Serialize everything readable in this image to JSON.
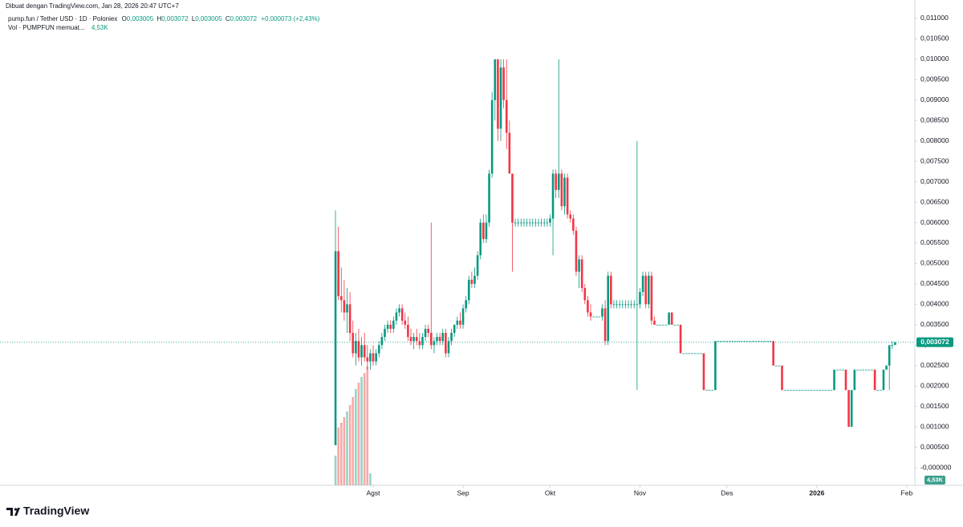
{
  "header": {
    "credit": "Dibuat dengan TradingView.com, Jan 28, 2026 20:47 UTC+7",
    "logo": "TradingView"
  },
  "chart_data": {
    "type": "candlestick",
    "symbol": "pump.fun / Tether USD · 1D · Poloniex",
    "ohlc_legend": [
      {
        "label": "O",
        "value": "0,003005"
      },
      {
        "label": "H",
        "value": "0,003072"
      },
      {
        "label": "L",
        "value": "0,003005"
      },
      {
        "label": "C",
        "value": "0,003072"
      }
    ],
    "change": "+0,000073 (+2,43%)",
    "volume_legend": {
      "label": "Vol · PUMPFUN memuat...",
      "value": "4,53K"
    },
    "price_label": "0,003072",
    "volume_label": "4,53K",
    "up_color": "#089981",
    "down_color": "#f23645",
    "volume_up_color": "#94d5c8",
    "volume_down_color": "#f7a9a7",
    "xlim": [
      -115.7,
      199.8
    ],
    "xticks": [
      {
        "value": 13,
        "label": "Agst"
      },
      {
        "value": 44,
        "label": "Sep"
      },
      {
        "value": 74,
        "label": "Okt"
      },
      {
        "value": 105,
        "label": "Nov"
      },
      {
        "value": 135,
        "label": "Des"
      },
      {
        "value": 166,
        "label": "2026"
      },
      {
        "value": 197,
        "label": "Feb"
      }
    ],
    "ylim": [
      -0.000432,
      0.011255
    ],
    "yticks": [
      {
        "value": 0,
        "label": "-0,000000"
      },
      {
        "value": 0.0005,
        "label": "0,000500"
      },
      {
        "value": 0.001,
        "label": "0,001000"
      },
      {
        "value": 0.0015,
        "label": "0,001500"
      },
      {
        "value": 0.002,
        "label": "0,002000"
      },
      {
        "value": 0.0025,
        "label": "0,002500"
      },
      {
        "value": 0.003,
        "label": "0,003000"
      },
      {
        "value": 0.0035,
        "label": "0,003500"
      },
      {
        "value": 0.004,
        "label": "0,004000"
      },
      {
        "value": 0.0045,
        "label": "0,004500"
      },
      {
        "value": 0.005,
        "label": "0,005000"
      },
      {
        "value": 0.0055,
        "label": "0,005500"
      },
      {
        "value": 0.006,
        "label": "0,006000"
      },
      {
        "value": 0.0065,
        "label": "0,006500"
      },
      {
        "value": 0.007,
        "label": "0,007000"
      },
      {
        "value": 0.0075,
        "label": "0,007500"
      },
      {
        "value": 0.008,
        "label": "0,008000"
      },
      {
        "value": 0.0085,
        "label": "0,008500"
      },
      {
        "value": 0.009,
        "label": "0,009000"
      },
      {
        "value": 0.0095,
        "label": "0,009500"
      },
      {
        "value": 0.01,
        "label": "0,010000"
      },
      {
        "value": 0.0105,
        "label": "0,010500"
      },
      {
        "value": 0.011,
        "label": "0,011000"
      }
    ],
    "volume": [
      370,
      720,
      780,
      850,
      920,
      1000,
      1100,
      1200,
      1280,
      1350,
      1400,
      1480,
      150
    ],
    "candles": [
      [
        0.00055,
        0.0063,
        0.00055,
        0.0053
      ],
      [
        0.0053,
        0.0059,
        0.0041,
        0.0042
      ],
      [
        0.0042,
        0.0049,
        0.0038,
        0.0041
      ],
      [
        0.0041,
        0.0046,
        0.0036,
        0.0038
      ],
      [
        0.0038,
        0.0044,
        0.0033,
        0.004
      ],
      [
        0.004,
        0.0043,
        0.0031,
        0.0033
      ],
      [
        0.0033,
        0.0036,
        0.0027,
        0.0028
      ],
      [
        0.0028,
        0.0033,
        0.0025,
        0.0031
      ],
      [
        0.0031,
        0.0034,
        0.0026,
        0.0027
      ],
      [
        0.0027,
        0.0032,
        0.0025,
        0.003
      ],
      [
        0.003,
        0.0033,
        0.0026,
        0.0027
      ],
      [
        0.0027,
        0.003,
        0.0024,
        0.0026
      ],
      [
        0.0026,
        0.0029,
        0.0024,
        0.0028
      ],
      [
        0.0028,
        0.003,
        0.0025,
        0.0026
      ],
      [
        0.0026,
        0.0029,
        0.0025,
        0.0028
      ],
      [
        0.0028,
        0.0031,
        0.0027,
        0.003
      ],
      [
        0.003,
        0.0033,
        0.0029,
        0.0032
      ],
      [
        0.0032,
        0.0035,
        0.0031,
        0.0034
      ],
      [
        0.0034,
        0.0036,
        0.0033,
        0.0035
      ],
      [
        0.0035,
        0.0036,
        0.0033,
        0.0034
      ],
      [
        0.0034,
        0.0037,
        0.0033,
        0.0036
      ],
      [
        0.0036,
        0.0039,
        0.0035,
        0.0038
      ],
      [
        0.0038,
        0.004,
        0.0037,
        0.0039
      ],
      [
        0.0039,
        0.004,
        0.0035,
        0.0036
      ],
      [
        0.0036,
        0.0038,
        0.0034,
        0.0035
      ],
      [
        0.0035,
        0.0037,
        0.0031,
        0.0032
      ],
      [
        0.0032,
        0.0034,
        0.003,
        0.0031
      ],
      [
        0.0031,
        0.0033,
        0.0029,
        0.0032
      ],
      [
        0.0032,
        0.0034,
        0.003,
        0.0031
      ],
      [
        0.0031,
        0.0033,
        0.0029,
        0.003
      ],
      [
        0.003,
        0.0033,
        0.0029,
        0.0032
      ],
      [
        0.0032,
        0.0035,
        0.0031,
        0.0034
      ],
      [
        0.0034,
        0.0035,
        0.0032,
        0.0033
      ],
      [
        0.0033,
        0.006,
        0.0029,
        0.003
      ],
      [
        0.003,
        0.0032,
        0.0028,
        0.0031
      ],
      [
        0.0031,
        0.0033,
        0.003,
        0.0032
      ],
      [
        0.0032,
        0.0033,
        0.003,
        0.0031
      ],
      [
        0.0031,
        0.0034,
        0.003,
        0.0033
      ],
      [
        0.0033,
        0.0034,
        0.0027,
        0.0028
      ],
      [
        0.0028,
        0.0032,
        0.0027,
        0.0031
      ],
      [
        0.0031,
        0.0034,
        0.003,
        0.0033
      ],
      [
        0.0033,
        0.0035,
        0.0032,
        0.0035
      ],
      [
        0.0035,
        0.0037,
        0.0034,
        0.0036
      ],
      [
        0.0036,
        0.0038,
        0.0034,
        0.0035
      ],
      [
        0.0035,
        0.004,
        0.0034,
        0.0039
      ],
      [
        0.0039,
        0.0042,
        0.0038,
        0.0041
      ],
      [
        0.0041,
        0.0047,
        0.004,
        0.0046
      ],
      [
        0.0046,
        0.0048,
        0.0044,
        0.0045
      ],
      [
        0.0045,
        0.0049,
        0.0044,
        0.0047
      ],
      [
        0.0047,
        0.0053,
        0.0046,
        0.0052
      ],
      [
        0.0052,
        0.0061,
        0.0051,
        0.006
      ],
      [
        0.006,
        0.0062,
        0.0055,
        0.0056
      ],
      [
        0.0056,
        0.0062,
        0.0055,
        0.006
      ],
      [
        0.006,
        0.0073,
        0.0059,
        0.0072
      ],
      [
        0.0072,
        0.0092,
        0.0071,
        0.009
      ],
      [
        0.009,
        0.01,
        0.0085,
        0.01
      ],
      [
        0.01,
        0.01,
        0.008,
        0.0083
      ],
      [
        0.0083,
        0.01,
        0.008,
        0.0098
      ],
      [
        0.0098,
        0.01,
        0.0088,
        0.009
      ],
      [
        0.009,
        0.01,
        0.0078,
        0.0082
      ],
      [
        0.0082,
        0.0085,
        0.0072,
        0.0072
      ],
      [
        0.0072,
        0.0072,
        0.0048,
        0.006
      ],
      [
        0.006,
        0.0061,
        0.0059,
        0.006
      ],
      [
        0.006,
        0.0061,
        0.0059,
        0.006
      ],
      [
        0.006,
        0.0061,
        0.0059,
        0.006
      ],
      [
        0.006,
        0.0061,
        0.0059,
        0.006
      ],
      [
        0.006,
        0.0061,
        0.0059,
        0.006
      ],
      [
        0.006,
        0.0061,
        0.0059,
        0.006
      ],
      [
        0.006,
        0.0061,
        0.0059,
        0.006
      ],
      [
        0.006,
        0.0061,
        0.0059,
        0.006
      ],
      [
        0.006,
        0.0061,
        0.0059,
        0.006
      ],
      [
        0.006,
        0.0061,
        0.0059,
        0.006
      ],
      [
        0.006,
        0.0061,
        0.0059,
        0.006
      ],
      [
        0.006,
        0.0061,
        0.0059,
        0.006
      ],
      [
        0.006,
        0.0062,
        0.0059,
        0.0061
      ],
      [
        0.0061,
        0.0073,
        0.0052,
        0.0072
      ],
      [
        0.0072,
        0.0073,
        0.0066,
        0.0068
      ],
      [
        0.0068,
        0.01,
        0.0066,
        0.0072
      ],
      [
        0.0072,
        0.0073,
        0.0063,
        0.0064
      ],
      [
        0.0064,
        0.0072,
        0.0062,
        0.0071
      ],
      [
        0.0071,
        0.0072,
        0.0061,
        0.0062
      ],
      [
        0.0062,
        0.0063,
        0.006,
        0.0061
      ],
      [
        0.0061,
        0.0062,
        0.0057,
        0.0058
      ],
      [
        0.0058,
        0.0059,
        0.0047,
        0.0048
      ],
      [
        0.0048,
        0.0052,
        0.0044,
        0.0051
      ],
      [
        0.0051,
        0.0052,
        0.0043,
        0.0044
      ],
      [
        0.0044,
        0.0045,
        0.004,
        0.0041
      ],
      [
        0.0041,
        0.0042,
        0.0037,
        0.0038
      ],
      [
        0.0038,
        0.004,
        0.0036,
        0.0037
      ],
      [
        0.0037,
        0.0037,
        0.0037,
        0.0037
      ],
      [
        0.0037,
        0.0037,
        0.0037,
        0.0037
      ],
      [
        0.0037,
        0.0037,
        0.0037,
        0.0037
      ],
      [
        0.0037,
        0.004,
        0.0036,
        0.0039
      ],
      [
        0.0039,
        0.0041,
        0.003,
        0.0031
      ],
      [
        0.0031,
        0.0048,
        0.003,
        0.0047
      ],
      [
        0.0047,
        0.0048,
        0.0039,
        0.004
      ],
      [
        0.004,
        0.0041,
        0.0039,
        0.004
      ],
      [
        0.004,
        0.0041,
        0.0039,
        0.004
      ],
      [
        0.004,
        0.0041,
        0.0039,
        0.004
      ],
      [
        0.004,
        0.0041,
        0.0039,
        0.004
      ],
      [
        0.004,
        0.0041,
        0.0039,
        0.004
      ],
      [
        0.004,
        0.0041,
        0.0039,
        0.004
      ],
      [
        0.004,
        0.0041,
        0.0039,
        0.004
      ],
      [
        0.004,
        0.0041,
        0.0039,
        0.004
      ],
      [
        0.004,
        0.008,
        0.0019,
        0.004
      ],
      [
        0.004,
        0.0044,
        0.0039,
        0.0043
      ],
      [
        0.0043,
        0.0048,
        0.0042,
        0.0047
      ],
      [
        0.0047,
        0.0048,
        0.0039,
        0.004
      ],
      [
        0.004,
        0.0048,
        0.0039,
        0.0047
      ],
      [
        0.0047,
        0.0048,
        0.0035,
        0.0036
      ],
      [
        0.0036,
        0.0037,
        0.0035,
        0.0035
      ],
      [
        0.0035,
        0.0035,
        0.0035,
        0.0035
      ],
      [
        0.0035,
        0.0035,
        0.0035,
        0.0035
      ],
      [
        0.0035,
        0.0035,
        0.0035,
        0.0035
      ],
      [
        0.0035,
        0.0035,
        0.0035,
        0.0035
      ],
      [
        0.0035,
        0.0038,
        0.0035,
        0.0038
      ],
      [
        0.0038,
        0.0038,
        0.0035,
        0.0035
      ],
      [
        0.0035,
        0.0035,
        0.0035,
        0.0035
      ],
      [
        0.0035,
        0.0035,
        0.0035,
        0.0035
      ],
      [
        0.0035,
        0.0035,
        0.0028,
        0.0028
      ],
      [
        0.0028,
        0.0028,
        0.0028,
        0.0028
      ],
      [
        0.0028,
        0.0028,
        0.0028,
        0.0028
      ],
      [
        0.0028,
        0.0028,
        0.0028,
        0.0028
      ],
      [
        0.0028,
        0.0028,
        0.0028,
        0.0028
      ],
      [
        0.0028,
        0.0028,
        0.0028,
        0.0028
      ],
      [
        0.0028,
        0.0028,
        0.0028,
        0.0028
      ],
      [
        0.0028,
        0.0028,
        0.0028,
        0.0028
      ],
      [
        0.0028,
        0.0028,
        0.0019,
        0.0019
      ],
      [
        0.0019,
        0.0019,
        0.0019,
        0.0019
      ],
      [
        0.0019,
        0.0019,
        0.0019,
        0.0019
      ],
      [
        0.0019,
        0.0019,
        0.0019,
        0.0019
      ],
      [
        0.0019,
        0.0031,
        0.0019,
        0.0031
      ],
      [
        0.0031,
        0.0031,
        0.0031,
        0.0031
      ],
      [
        0.0031,
        0.0031,
        0.0031,
        0.0031
      ],
      [
        0.0031,
        0.0031,
        0.0031,
        0.0031
      ],
      [
        0.0031,
        0.0031,
        0.0031,
        0.0031
      ],
      [
        0.0031,
        0.0031,
        0.0031,
        0.0031
      ],
      [
        0.0031,
        0.0031,
        0.0031,
        0.0031
      ],
      [
        0.0031,
        0.0031,
        0.0031,
        0.0031
      ],
      [
        0.0031,
        0.0031,
        0.0031,
        0.0031
      ],
      [
        0.0031,
        0.0031,
        0.0031,
        0.0031
      ],
      [
        0.0031,
        0.0031,
        0.0031,
        0.0031
      ],
      [
        0.0031,
        0.0031,
        0.0031,
        0.0031
      ],
      [
        0.0031,
        0.0031,
        0.0031,
        0.0031
      ],
      [
        0.0031,
        0.0031,
        0.0031,
        0.0031
      ],
      [
        0.0031,
        0.0031,
        0.0031,
        0.0031
      ],
      [
        0.0031,
        0.0031,
        0.0031,
        0.0031
      ],
      [
        0.0031,
        0.0031,
        0.0031,
        0.0031
      ],
      [
        0.0031,
        0.0031,
        0.0031,
        0.0031
      ],
      [
        0.0031,
        0.0031,
        0.0031,
        0.0031
      ],
      [
        0.0031,
        0.0031,
        0.0031,
        0.0031
      ],
      [
        0.0031,
        0.0031,
        0.0025,
        0.0025
      ],
      [
        0.0025,
        0.0025,
        0.0025,
        0.0025
      ],
      [
        0.0025,
        0.0025,
        0.0025,
        0.0025
      ],
      [
        0.0025,
        0.0025,
        0.0019,
        0.0019
      ],
      [
        0.0019,
        0.0019,
        0.0019,
        0.0019
      ],
      [
        0.0019,
        0.0019,
        0.0019,
        0.0019
      ],
      [
        0.0019,
        0.0019,
        0.0019,
        0.0019
      ],
      [
        0.0019,
        0.0019,
        0.0019,
        0.0019
      ],
      [
        0.0019,
        0.0019,
        0.0019,
        0.0019
      ],
      [
        0.0019,
        0.0019,
        0.0019,
        0.0019
      ],
      [
        0.0019,
        0.0019,
        0.0019,
        0.0019
      ],
      [
        0.0019,
        0.0019,
        0.0019,
        0.0019
      ],
      [
        0.0019,
        0.0019,
        0.0019,
        0.0019
      ],
      [
        0.0019,
        0.0019,
        0.0019,
        0.0019
      ],
      [
        0.0019,
        0.0019,
        0.0019,
        0.0019
      ],
      [
        0.0019,
        0.0019,
        0.0019,
        0.0019
      ],
      [
        0.0019,
        0.0019,
        0.0019,
        0.0019
      ],
      [
        0.0019,
        0.0019,
        0.0019,
        0.0019
      ],
      [
        0.0019,
        0.0019,
        0.0019,
        0.0019
      ],
      [
        0.0019,
        0.0019,
        0.0019,
        0.0019
      ],
      [
        0.0019,
        0.0019,
        0.0019,
        0.0019
      ],
      [
        0.0019,
        0.0024,
        0.0019,
        0.0024
      ],
      [
        0.0024,
        0.0024,
        0.0024,
        0.0024
      ],
      [
        0.0024,
        0.0024,
        0.0024,
        0.0024
      ],
      [
        0.0024,
        0.0024,
        0.0024,
        0.0024
      ],
      [
        0.0024,
        0.0024,
        0.0019,
        0.0019
      ],
      [
        0.0019,
        0.0019,
        0.001,
        0.001
      ],
      [
        0.001,
        0.0019,
        0.001,
        0.0019
      ],
      [
        0.0019,
        0.0024,
        0.0019,
        0.0024
      ],
      [
        0.0024,
        0.0024,
        0.0024,
        0.0024
      ],
      [
        0.0024,
        0.0024,
        0.0024,
        0.0024
      ],
      [
        0.0024,
        0.0024,
        0.0024,
        0.0024
      ],
      [
        0.0024,
        0.0024,
        0.0024,
        0.0024
      ],
      [
        0.0024,
        0.0024,
        0.0024,
        0.0024
      ],
      [
        0.0024,
        0.0024,
        0.0024,
        0.0024
      ],
      [
        0.0024,
        0.0024,
        0.0019,
        0.0019
      ],
      [
        0.0019,
        0.0019,
        0.0019,
        0.0019
      ],
      [
        0.0019,
        0.0019,
        0.0019,
        0.0019
      ],
      [
        0.0019,
        0.0024,
        0.0019,
        0.0024
      ],
      [
        0.0024,
        0.0025,
        0.0024,
        0.0025
      ],
      [
        0.0025,
        0.003,
        0.0019,
        0.003
      ],
      [
        0.003,
        0.0031,
        0.0029,
        0.003005
      ],
      [
        0.003005,
        0.003072,
        0.003005,
        0.003072
      ]
    ]
  }
}
